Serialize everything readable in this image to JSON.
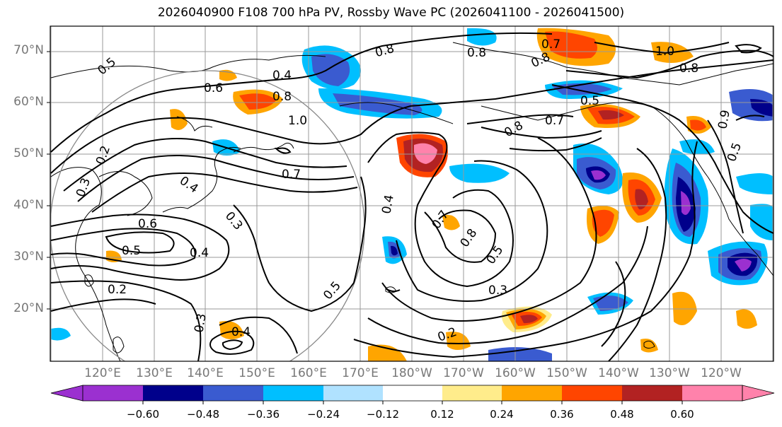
{
  "title": "2026040900 F108 700 hPa PV, Rossby Wave PC (2026041100 - 2026041500)",
  "latitude_labels": [
    "70°N",
    "60°N",
    "50°N",
    "40°N",
    "30°N",
    "20°N"
  ],
  "longitude_labels": [
    "120°E",
    "130°E",
    "140°E",
    "150°E",
    "160°E",
    "170°E",
    "180°W",
    "170°W",
    "160°W",
    "150°W",
    "140°W",
    "130°W",
    "120°W"
  ],
  "colorbar": {
    "tick_labels": [
      "−0.60",
      "−0.48",
      "−0.36",
      "−0.24",
      "−0.12",
      "0.12",
      "0.24",
      "0.36",
      "0.48",
      "0.60"
    ],
    "colors": [
      "#9b30d0",
      "#00008b",
      "#3a5bd0",
      "#00bfff",
      "#b0e2ff",
      "#ffffff",
      "#ffec8b",
      "#ffa500",
      "#ff4500",
      "#b22222",
      "#ff82ab"
    ]
  },
  "contour_labels": [
    "0.5",
    "0.4",
    "0.6",
    "0.8",
    "1.0",
    "0.7",
    "0.2",
    "0.3",
    "0.4",
    "0.3",
    "0.6",
    "0.5",
    "0.4",
    "0.2",
    "0.3",
    "0.4",
    "0.5",
    "0.4",
    "0.7",
    "0.8",
    "0.5",
    "0.3",
    "0.2",
    "0.8",
    "0.8",
    "0.7",
    "0.8",
    "1.0",
    "0.8",
    "0.7",
    "0.5",
    "0.8",
    "0.5",
    "0.9"
  ]
}
